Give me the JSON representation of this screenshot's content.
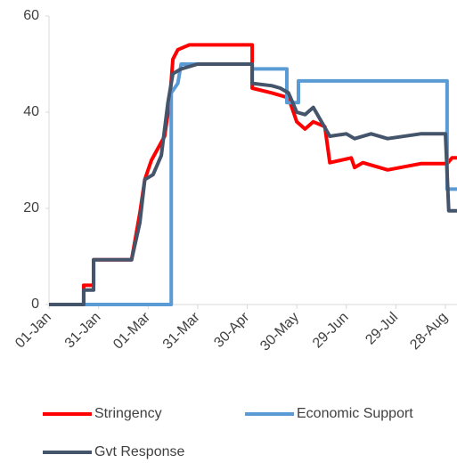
{
  "chart_data": {
    "type": "line",
    "xlim": [
      0,
      247
    ],
    "ylim": [
      0,
      60
    ],
    "yticks": [
      0,
      20,
      40,
      60
    ],
    "xticks": [
      {
        "value": 0,
        "label": "01-Jan"
      },
      {
        "value": 30,
        "label": "31-Jan"
      },
      {
        "value": 60,
        "label": "01-Mar"
      },
      {
        "value": 90,
        "label": "31-Mar"
      },
      {
        "value": 120,
        "label": "30-Apr"
      },
      {
        "value": 150,
        "label": "30-May"
      },
      {
        "value": 180,
        "label": "29-Jun"
      },
      {
        "value": 210,
        "label": "29-Jul"
      },
      {
        "value": 240,
        "label": "28-Aug"
      }
    ],
    "grid": false,
    "series": [
      {
        "name": "Stringency",
        "color": "#ff0000",
        "x": [
          0,
          21,
          21,
          27,
          27,
          50,
          55,
          58,
          62,
          70,
          73,
          75,
          78,
          85,
          123,
          123,
          135,
          145,
          150,
          155,
          160,
          167,
          170,
          183,
          185,
          190,
          205,
          225,
          241,
          244,
          247
        ],
        "values": [
          0,
          0,
          4,
          4,
          9.3,
          9.3,
          19,
          26,
          30,
          35,
          42,
          51,
          53,
          54,
          54,
          45,
          44,
          43,
          38,
          36.5,
          38,
          37,
          29.5,
          30.5,
          28.5,
          29.5,
          28,
          29.3,
          29.3,
          30.5,
          30.5
        ]
      },
      {
        "name": "Economic Support",
        "color": "#5b9bd5",
        "x": [
          0,
          74,
          74,
          78,
          80,
          123,
          123,
          144,
          144,
          151,
          151,
          241,
          241,
          247
        ],
        "values": [
          0,
          0,
          44,
          46,
          50,
          50,
          49,
          49,
          42,
          42,
          46.5,
          46.5,
          24,
          24
        ]
      },
      {
        "name": "Gvt Response",
        "color": "#44546a",
        "x": [
          0,
          21,
          21,
          27,
          27,
          50,
          55,
          58,
          63,
          68,
          72,
          75,
          80,
          90,
          123,
          123,
          135,
          140,
          145,
          150,
          155,
          160,
          170,
          180,
          185,
          195,
          205,
          225,
          240,
          242,
          247
        ],
        "values": [
          0,
          0,
          3,
          3,
          9.3,
          9.3,
          17,
          26,
          27,
          31,
          42,
          48,
          49,
          50,
          50,
          46,
          45.5,
          45,
          44,
          40,
          39.5,
          41,
          35,
          35.5,
          34.5,
          35.5,
          34.5,
          35.5,
          35.5,
          19.5,
          19.5
        ]
      }
    ]
  }
}
